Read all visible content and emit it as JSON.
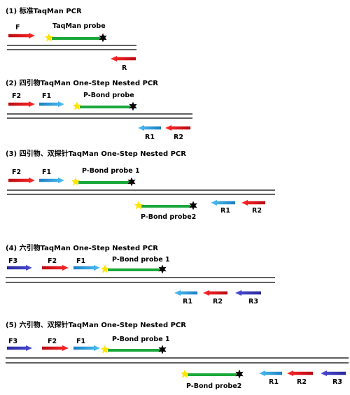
{
  "colors": {
    "red": "#e8141e",
    "blue": "#2aa1e0",
    "navy": "#3a39b8",
    "green": "#1aa83b",
    "yellow": "#ffe400",
    "black": "#000000"
  },
  "panels": [
    {
      "id": "p1",
      "title": "(1) 标准TaqMan PCR",
      "F": "F",
      "probe_label": "TaqMan probe",
      "R": "R"
    },
    {
      "id": "p2",
      "title": "(2) 四引物TaqMan One-Step Nested PCR",
      "F2": "F2",
      "F1": "F1",
      "probe_label": "P-Bond probe",
      "R1": "R1",
      "R2": "R2"
    },
    {
      "id": "p3",
      "title": "(3) 四引物、双探针TaqMan One-Step Nested PCR",
      "F2": "F2",
      "F1": "F1",
      "probe1_label": "P-Bond probe 1",
      "probe2_label": "P-Bond probe2",
      "R1": "R1",
      "R2": "R2"
    },
    {
      "id": "p4",
      "title": "(4) 六引物TaqMan One-Step Nested PCR",
      "F3": "F3",
      "F2": "F2",
      "F1": "F1",
      "probe_label": "P-Bond probe 1",
      "R1": "R1",
      "R2": "R2",
      "R3": "R3"
    },
    {
      "id": "p5",
      "title": "(5) 六引物、双探针TaqMan One-Step Nested PCR",
      "F3": "F3",
      "F2": "F2",
      "F1": "F1",
      "probe1_label": "P-Bond probe 1",
      "probe2_label": "P-Bond probe2",
      "R1": "R1",
      "R2": "R2",
      "R3": "R3"
    }
  ]
}
